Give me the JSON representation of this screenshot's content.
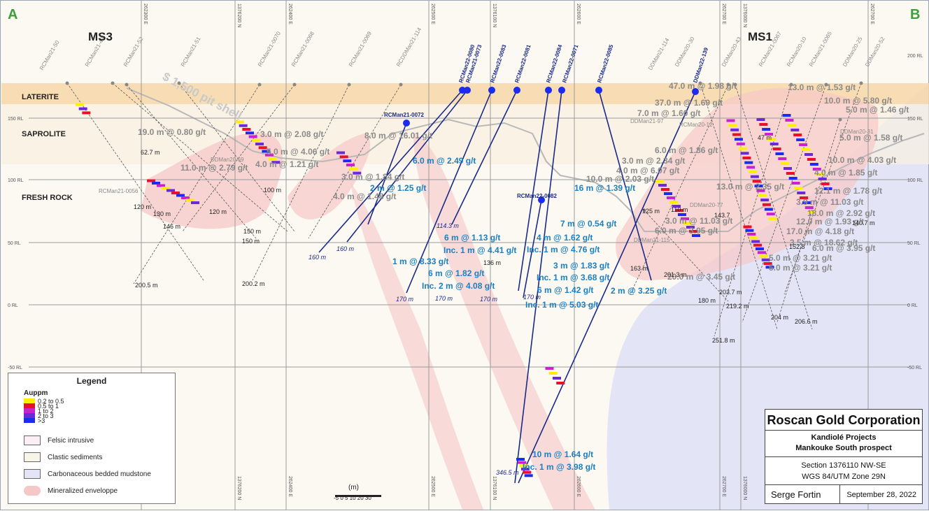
{
  "section_ends": {
    "left": "A",
    "right": "B"
  },
  "zones": {
    "ms3": "MS3",
    "ms1": "MS1"
  },
  "layers": {
    "laterite": "LATERITE",
    "saprolite": "SAPROLITE",
    "fresh_rock": "FRESH ROCK"
  },
  "pit_shell_label": "$ 1,500 pit shell",
  "rl_labels": {
    "left": [
      "150 RL",
      "100 RL",
      "50 RL",
      "0 RL",
      "-50 RL"
    ],
    "right": [
      "200 RL",
      "150 RL",
      "100 RL",
      "50 RL",
      "0 RL",
      "-50 RL"
    ]
  },
  "grid_labels_top": [
    "262300 E",
    "1376200 N",
    "262400 E",
    "262500 E",
    "1376100 N",
    "262600 E",
    "262700 E",
    "1376000 N",
    "262700 E"
  ],
  "grid_labels_bottom": [
    "1376200 N",
    "262400 E",
    "262500 E",
    "1376100 N",
    "262600 E",
    "262700 E",
    "1376000 N"
  ],
  "hole_names_grey": [
    "RCMan21-50",
    "RCMan21-49",
    "RCMan21-52",
    "RCMan21-51",
    "RCMan21-0070",
    "RCMan21-0068",
    "RCMan21-0069",
    "RCDDMan21-114",
    "DDMan21-114",
    "DDMan20-30",
    "DDMan20-43",
    "RCMan21-0067",
    "RCMan20-10",
    "RCMan21-0065",
    "DDMan20-25",
    "DDMan20-52",
    "RCMan21-0056",
    "DDMan20-69",
    "DDMan21-97",
    "RCMan20-12",
    "DDMan20-31",
    "DDMan20-77",
    "DDMan21-115"
  ],
  "hole_names_new": [
    "RCMan22-0080",
    "RCMan21-0073",
    "RCMan22-0083",
    "RCMan22-0081",
    "RCMan22-0084",
    "RCMan22-0071",
    "RCMan22-0085",
    "DDMan22-139",
    "RCMan21-0072",
    "RCMan22-0082"
  ],
  "intercepts_grey": [
    "19.0 m @ 0.80 g/t",
    "11.0 m @ 2.79 g/t",
    "3.0 m @ 2.08 g/t",
    "5.0 m @ 4.06 g/t",
    "4.0 m @ 1.21 g/t",
    "8.0 m @ 16.01 g/t",
    "3.0 m @ 1.84 g/t",
    "4.0 m @ 1.48 g/t",
    "47.0 m @ 1.98 g/t",
    "37.0 m @ 1.69 g/t",
    "7.0 m @ 1.60 g/t",
    "13.0 m @ 1.53 g/t",
    "10.0 m @ 5.80 g/t",
    "5.0 m @ 1.46 g/t",
    "5.0 m @ 1.58 g/t",
    "6.0 m @ 1.86 g/t",
    "3.0 m @ 2.34 g/t",
    "4.0 m @ 6.07 g/t",
    "10.0 m @ 2.03 g/t",
    "13.0 m @ 2.35 g/t",
    "10.0 m @ 4.03 g/t",
    "4.0 m @ 1.85 g/t",
    "12.1 m @ 1.78 g/t",
    "3.9 m @ 11.03 g/t",
    "18.0 m @ 2.92 g/t",
    "12.0 m @ 1.93 g/t",
    "17.0 m @ 4.18 g/t",
    "3.5 m @ 18.62 g/t",
    "6.0 m @ 3.95 g/t",
    "5.0 m @ 3.21 g/t",
    "5.0 m @ 3.21 g/t",
    "3.0 m @ 11.03 g/t",
    "6.0 m @ 3.95 g/t",
    "20.0 m @ 3.45 g/t"
  ],
  "intercepts_new": [
    "6.0 m @ 2.49 g/t",
    "2 m @ 1.25 g/t",
    "16 m @ 1.39 g/t",
    "7 m @ 0.54 g/t",
    "4 m @ 1.62 g/t",
    "Inc. 1 m @ 4.76 g/t",
    "6 m @ 1.13 g/t",
    "Inc. 1 m @ 4.41 g/t",
    "1 m @ 8.33 g/t",
    "6 m @ 1.82 g/t",
    "Inc. 2 m @ 4.08 g/t",
    "3 m @ 1.83 g/t",
    "Inc. 1 m @ 3.68 g/t",
    "6 m @ 1.42 g/t",
    "2 m @ 3.25 g/t",
    "Inc. 1 m @ 5.03 g/t",
    "10 m @ 1.64 g/t",
    "Inc. 1 m @ 3.98 g/t"
  ],
  "depths_grey": [
    "62.7 m",
    "120 m",
    "130 m",
    "146 m",
    "120 m",
    "150 m",
    "150 m",
    "100 m",
    "200.5 m",
    "200.2 m",
    "125 m",
    "110 m",
    "143.7",
    "47 m",
    "152.8",
    "140.7 m",
    "180 m",
    "203.7 m",
    "219.2 m",
    "204 m",
    "206.6 m",
    "251.8 m",
    "201.3 m",
    "163 m",
    "136 m"
  ],
  "depths_new": [
    "160 m",
    "160 m",
    "114.3 m",
    "170 m",
    "170 m",
    "170 m",
    "170 m",
    "346.5 m"
  ],
  "scale": {
    "unit": "(m)",
    "ticks": "-5 0 5 10 20 30"
  },
  "legend": {
    "title": "Legend",
    "grade_title": "Auppm",
    "grades": [
      {
        "label": "0.2 to 0.5",
        "color": "#ffee00"
      },
      {
        "label": "0.5 to 1",
        "color": "#e8102a"
      },
      {
        "label": "1 to 2",
        "color": "#cc22cc"
      },
      {
        "label": "2 to 3",
        "color": "#6a2bd6"
      },
      {
        "label": ">3",
        "color": "#1b2cf0"
      }
    ],
    "units": [
      {
        "label": "Felsic intrusive",
        "color": "#fbeef4"
      },
      {
        "label": "Clastic sediments",
        "color": "#f7f5e8"
      },
      {
        "label": "Carbonaceous bedded mudstone",
        "color": "#e4e4f7"
      },
      {
        "label": "Mineralized enveloppe",
        "color": "#f6c7c7"
      }
    ]
  },
  "titleblock": {
    "company": "Roscan Gold Corporation",
    "project": "Kandiolé Projects",
    "prospect": "Mankouke South prospect",
    "section": "Section 1376110 NW-SE",
    "datum": "WGS 84/UTM Zone 29N",
    "author": "Serge Fortin",
    "date": "September 28, 2022"
  },
  "colors": {
    "new_hole": "#1a2a8a",
    "intercept_new": "#1a7fc4",
    "intercept_old": "#8a8a8a",
    "laterite": "#f7d7a8",
    "section_end": "#3aa03a"
  }
}
